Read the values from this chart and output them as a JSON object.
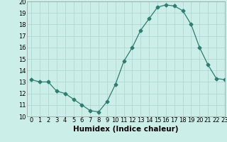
{
  "x": [
    0,
    1,
    2,
    3,
    4,
    5,
    6,
    7,
    8,
    9,
    10,
    11,
    12,
    13,
    14,
    15,
    16,
    17,
    18,
    19,
    20,
    21,
    22,
    23
  ],
  "y": [
    13.2,
    13.0,
    13.0,
    12.2,
    12.0,
    11.5,
    11.0,
    10.5,
    10.4,
    11.3,
    12.8,
    14.8,
    16.0,
    17.5,
    18.5,
    19.5,
    19.7,
    19.6,
    19.2,
    18.0,
    16.0,
    14.5,
    13.3,
    13.2
  ],
  "xlabel": "Humidex (Indice chaleur)",
  "ylim": [
    10,
    20
  ],
  "xlim": [
    -0.5,
    23
  ],
  "line_color": "#2e7d6e",
  "marker": "D",
  "marker_size": 2.5,
  "bg_color": "#cceee8",
  "grid_color": "#aad4ce",
  "xlabel_fontsize": 7.5,
  "tick_fontsize": 6.0
}
